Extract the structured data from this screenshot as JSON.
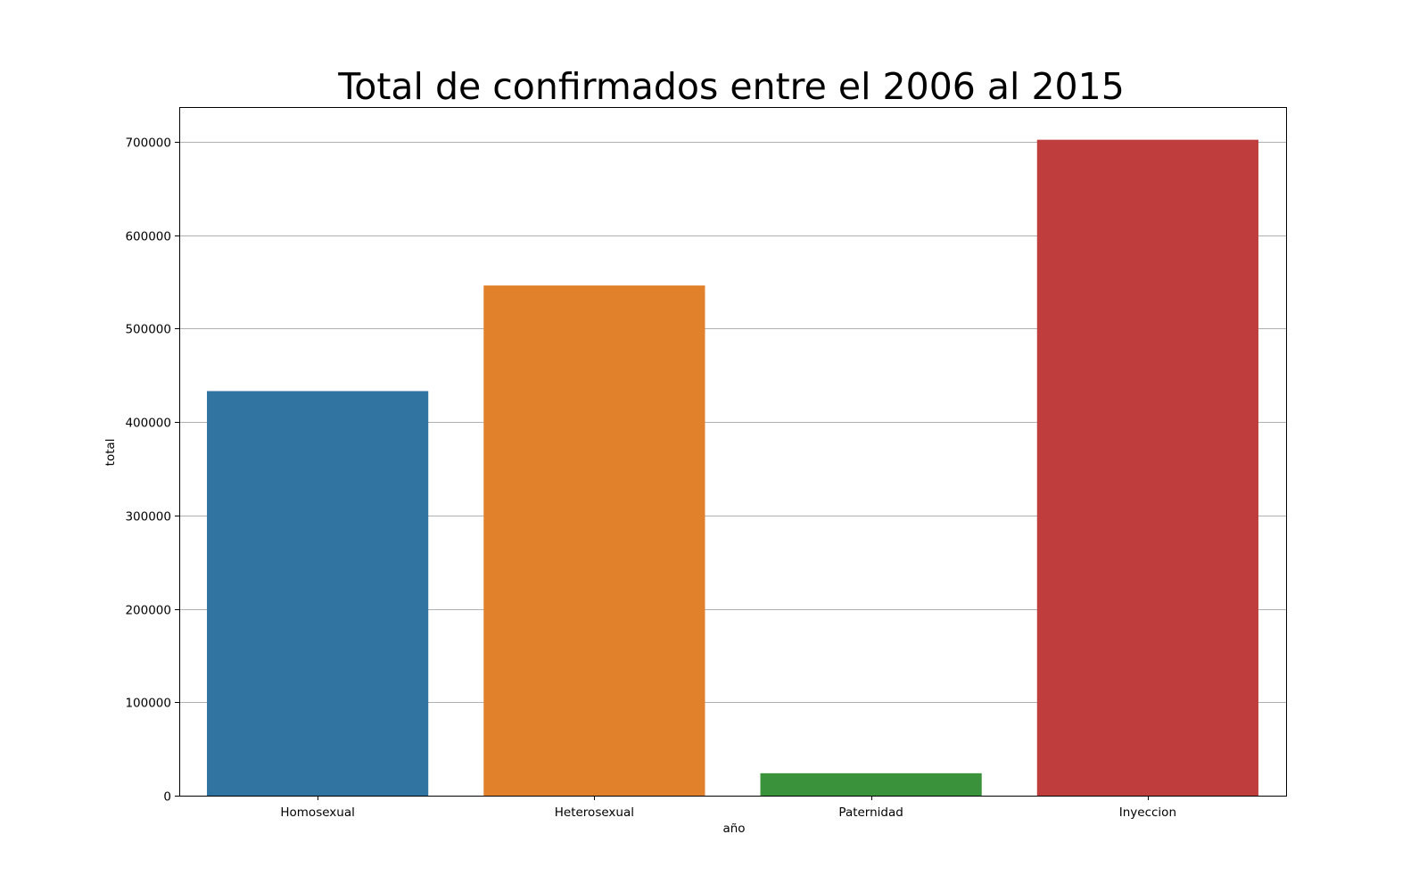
{
  "chart_data": {
    "type": "bar",
    "title": "Total de confirmados entre el 2006 al 2015",
    "xlabel": "año",
    "ylabel": "total",
    "categories": [
      "Homosexual",
      "Heterosexual",
      "Paternidad",
      "Inyeccion"
    ],
    "values": [
      433000,
      546000,
      24000,
      702000
    ],
    "colors": [
      "#3274a1",
      "#e1812c",
      "#3a923a",
      "#c03d3e"
    ],
    "ylim": [
      0,
      737000
    ],
    "yticks": [
      0,
      100000,
      200000,
      300000,
      400000,
      500000,
      600000,
      700000
    ],
    "grid": "y",
    "legend": "none"
  }
}
